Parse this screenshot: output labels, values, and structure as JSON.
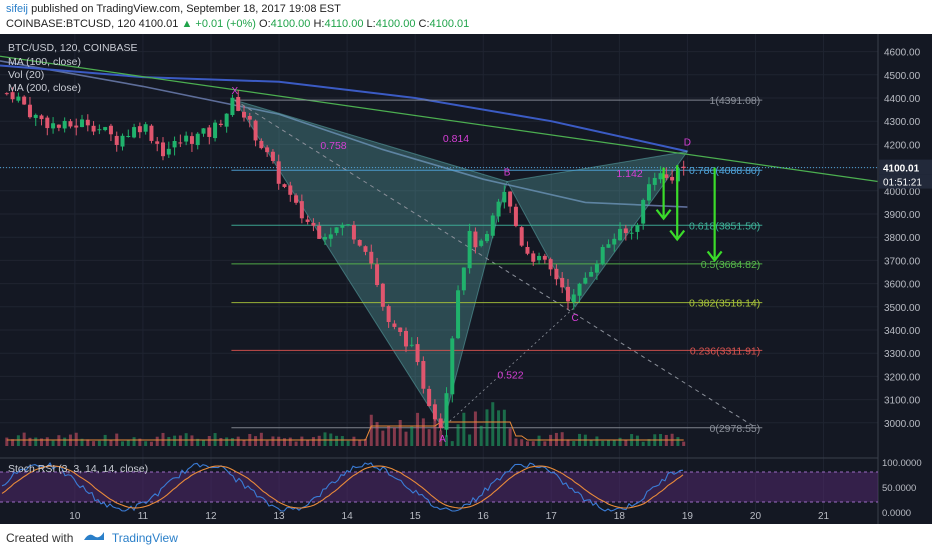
{
  "header": {
    "line1_user": "sifeij",
    "line1_rest": " published on TradingView.com, September 18, 2017 19:08 EST",
    "line2_symbol": "COINBASE:BTCUSD, 120",
    "line2_last": "4100.01",
    "line2_change": "▲ +0.01 (+0%)",
    "line2_o_label": "O:",
    "line2_o": "4100.00",
    "line2_h_label": "H:",
    "line2_h": "4110.00",
    "line2_l_label": "L:",
    "line2_l": "4100.00",
    "line2_c_label": "C:",
    "line2_c": "4100.01"
  },
  "legend": {
    "title": "BTC/USD, 120, COINBASE",
    "ma100": "MA (100, close)",
    "vol": "Vol (20)",
    "ma200": "MA (200, close)"
  },
  "osc_label": "Stoch RSI (3, 3, 14, 14, close)",
  "footer": {
    "created": "Created with",
    "brand": "TradingView"
  },
  "colors": {
    "bg": "#141823",
    "up": "#20b26c",
    "down": "#e0566e",
    "fib_line": "#7fbf7f",
    "pattern_fill": "#5fb3b3",
    "pattern_label": "#d63fd6",
    "trend": "#4caf50",
    "ma100": "#5e6e9a",
    "ma200": "#3b5bc4",
    "arrow": "#3bdc2a",
    "rsi_k": "#3a7bd5",
    "rsi_d": "#e88a3a",
    "rsi_band": "#5b2b7a"
  },
  "chart_data": {
    "type": "candlestick",
    "title": "BTC/USD, 120, COINBASE",
    "x_ticks": [
      "10",
      "11",
      "12",
      "13",
      "14",
      "15",
      "16",
      "17",
      "18",
      "19",
      "20",
      "21"
    ],
    "y_ticks": [
      3000,
      3100,
      3200,
      3300,
      3400,
      3500,
      3600,
      3700,
      3800,
      3900,
      4000,
      4100,
      4200,
      4300,
      4400,
      4500,
      4600
    ],
    "ylim": [
      2900,
      4650
    ],
    "last_price_label": "4100.01",
    "countdown_label": "01:51:21",
    "close_path": [
      {
        "day": 9.1,
        "price": 4420
      },
      {
        "day": 9.4,
        "price": 4320
      },
      {
        "day": 9.8,
        "price": 4270
      },
      {
        "day": 10.2,
        "price": 4300
      },
      {
        "day": 10.6,
        "price": 4220
      },
      {
        "day": 11.0,
        "price": 4290
      },
      {
        "day": 11.3,
        "price": 4170
      },
      {
        "day": 11.6,
        "price": 4220
      },
      {
        "day": 12.0,
        "price": 4250
      },
      {
        "day": 12.35,
        "price": 4391
      },
      {
        "day": 12.7,
        "price": 4220
      },
      {
        "day": 13.0,
        "price": 4050
      },
      {
        "day": 13.3,
        "price": 3900
      },
      {
        "day": 13.6,
        "price": 3820
      },
      {
        "day": 14.0,
        "price": 3850
      },
      {
        "day": 14.3,
        "price": 3750
      },
      {
        "day": 14.6,
        "price": 3420
      },
      {
        "day": 14.9,
        "price": 3350
      },
      {
        "day": 15.2,
        "price": 3100
      },
      {
        "day": 15.4,
        "price": 2978
      },
      {
        "day": 15.6,
        "price": 3550
      },
      {
        "day": 15.8,
        "price": 3800
      },
      {
        "day": 16.0,
        "price": 3750
      },
      {
        "day": 16.3,
        "price": 4000
      },
      {
        "day": 16.6,
        "price": 3750
      },
      {
        "day": 16.9,
        "price": 3680
      },
      {
        "day": 17.1,
        "price": 3620
      },
      {
        "day": 17.3,
        "price": 3520
      },
      {
        "day": 17.6,
        "price": 3680
      },
      {
        "day": 17.9,
        "price": 3800
      },
      {
        "day": 18.2,
        "price": 3820
      },
      {
        "day": 18.5,
        "price": 4080
      },
      {
        "day": 18.7,
        "price": 4050
      },
      {
        "day": 18.9,
        "price": 4100
      }
    ],
    "fib_levels": [
      {
        "ratio": "1",
        "label": "1(4391.08)",
        "price": 4391.08,
        "color": "#8a8f99"
      },
      {
        "ratio": "0.786",
        "label": "0.786(4088.80)",
        "price": 4088.8,
        "color": "#4fa3d9"
      },
      {
        "ratio": "0.618",
        "label": "0.618(3851.50)",
        "price": 3851.5,
        "color": "#3fb39a"
      },
      {
        "ratio": "0.5",
        "label": "0.5(3684.82)",
        "price": 3684.82,
        "color": "#57b84a"
      },
      {
        "ratio": "0.382",
        "label": "0.382(3518.14)",
        "price": 3518.14,
        "color": "#a8c43a"
      },
      {
        "ratio": "0.236",
        "label": "0.236(3311.91)",
        "price": 3311.91,
        "color": "#d9534f"
      },
      {
        "ratio": "0",
        "label": "0(2978.55)",
        "price": 2978.55,
        "color": "#8a8f99"
      }
    ],
    "pattern": {
      "points": [
        {
          "name": "X",
          "day": 12.35,
          "price": 4391
        },
        {
          "name": "A",
          "day": 15.4,
          "price": 2978
        },
        {
          "name": "B",
          "day": 16.35,
          "price": 4040
        },
        {
          "name": "C",
          "day": 17.35,
          "price": 3500
        },
        {
          "name": "D",
          "day": 19.0,
          "price": 4170
        }
      ],
      "ratios": [
        {
          "label": "0.758",
          "day": 13.8,
          "price": 4180
        },
        {
          "label": "0.814",
          "day": 15.6,
          "price": 4210
        },
        {
          "label": "1.142",
          "day": 18.15,
          "price": 4060
        },
        {
          "label": "0.522",
          "day": 16.4,
          "price": 3190
        }
      ]
    },
    "trendline": [
      {
        "day": 8.9,
        "price": 4580
      },
      {
        "day": 21.8,
        "price": 4040
      }
    ],
    "ma200_path": [
      {
        "day": 8.9,
        "price": 4540
      },
      {
        "day": 11.0,
        "price": 4490
      },
      {
        "day": 13.0,
        "price": 4470
      },
      {
        "day": 15.0,
        "price": 4400
      },
      {
        "day": 17.0,
        "price": 4300
      },
      {
        "day": 19.0,
        "price": 4170
      }
    ],
    "ma100_path": [
      {
        "day": 8.9,
        "price": 4560
      },
      {
        "day": 11.0,
        "price": 4450
      },
      {
        "day": 13.0,
        "price": 4330
      },
      {
        "day": 14.5,
        "price": 4180
      },
      {
        "day": 16.0,
        "price": 4050
      },
      {
        "day": 17.5,
        "price": 3950
      },
      {
        "day": 19.0,
        "price": 3930
      }
    ],
    "arrows": [
      {
        "day": 18.65,
        "from": 4100,
        "to": 3880
      },
      {
        "day": 18.85,
        "from": 4110,
        "to": 3790
      },
      {
        "day": 19.4,
        "from": 4100,
        "to": 3700
      }
    ],
    "stoch_rsi": {
      "ticks": [
        "100.0000",
        "50.0000",
        "0.0000"
      ],
      "upper_band": 80,
      "lower_band": 20
    }
  }
}
